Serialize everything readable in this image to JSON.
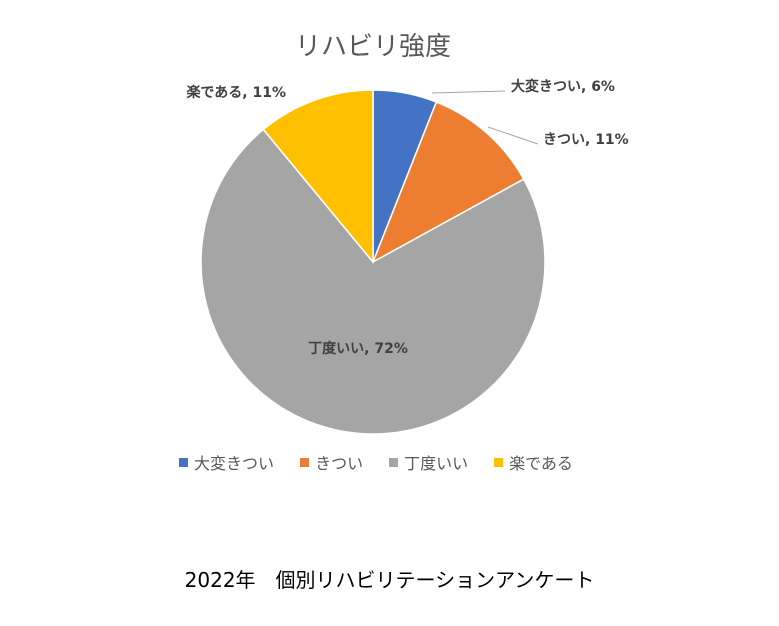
{
  "chart_data": {
    "type": "pie",
    "title": "リハビリ強度",
    "slices": [
      {
        "label": "大変きつい",
        "value": 6,
        "data_label": "大変きつい, 6%",
        "color": "#4472C4"
      },
      {
        "label": "きつい",
        "value": 11,
        "data_label": "きつい, 11%",
        "color": "#ED7D31"
      },
      {
        "label": "丁度いい",
        "value": 72,
        "data_label": "丁度いい, 72%",
        "color": "#A5A5A5"
      },
      {
        "label": "楽である",
        "value": 11,
        "data_label": "楽である, 11%",
        "color": "#FFC000"
      }
    ],
    "legend_position": "bottom"
  },
  "footer": "2022年　個別リハビリテーションアンケート"
}
